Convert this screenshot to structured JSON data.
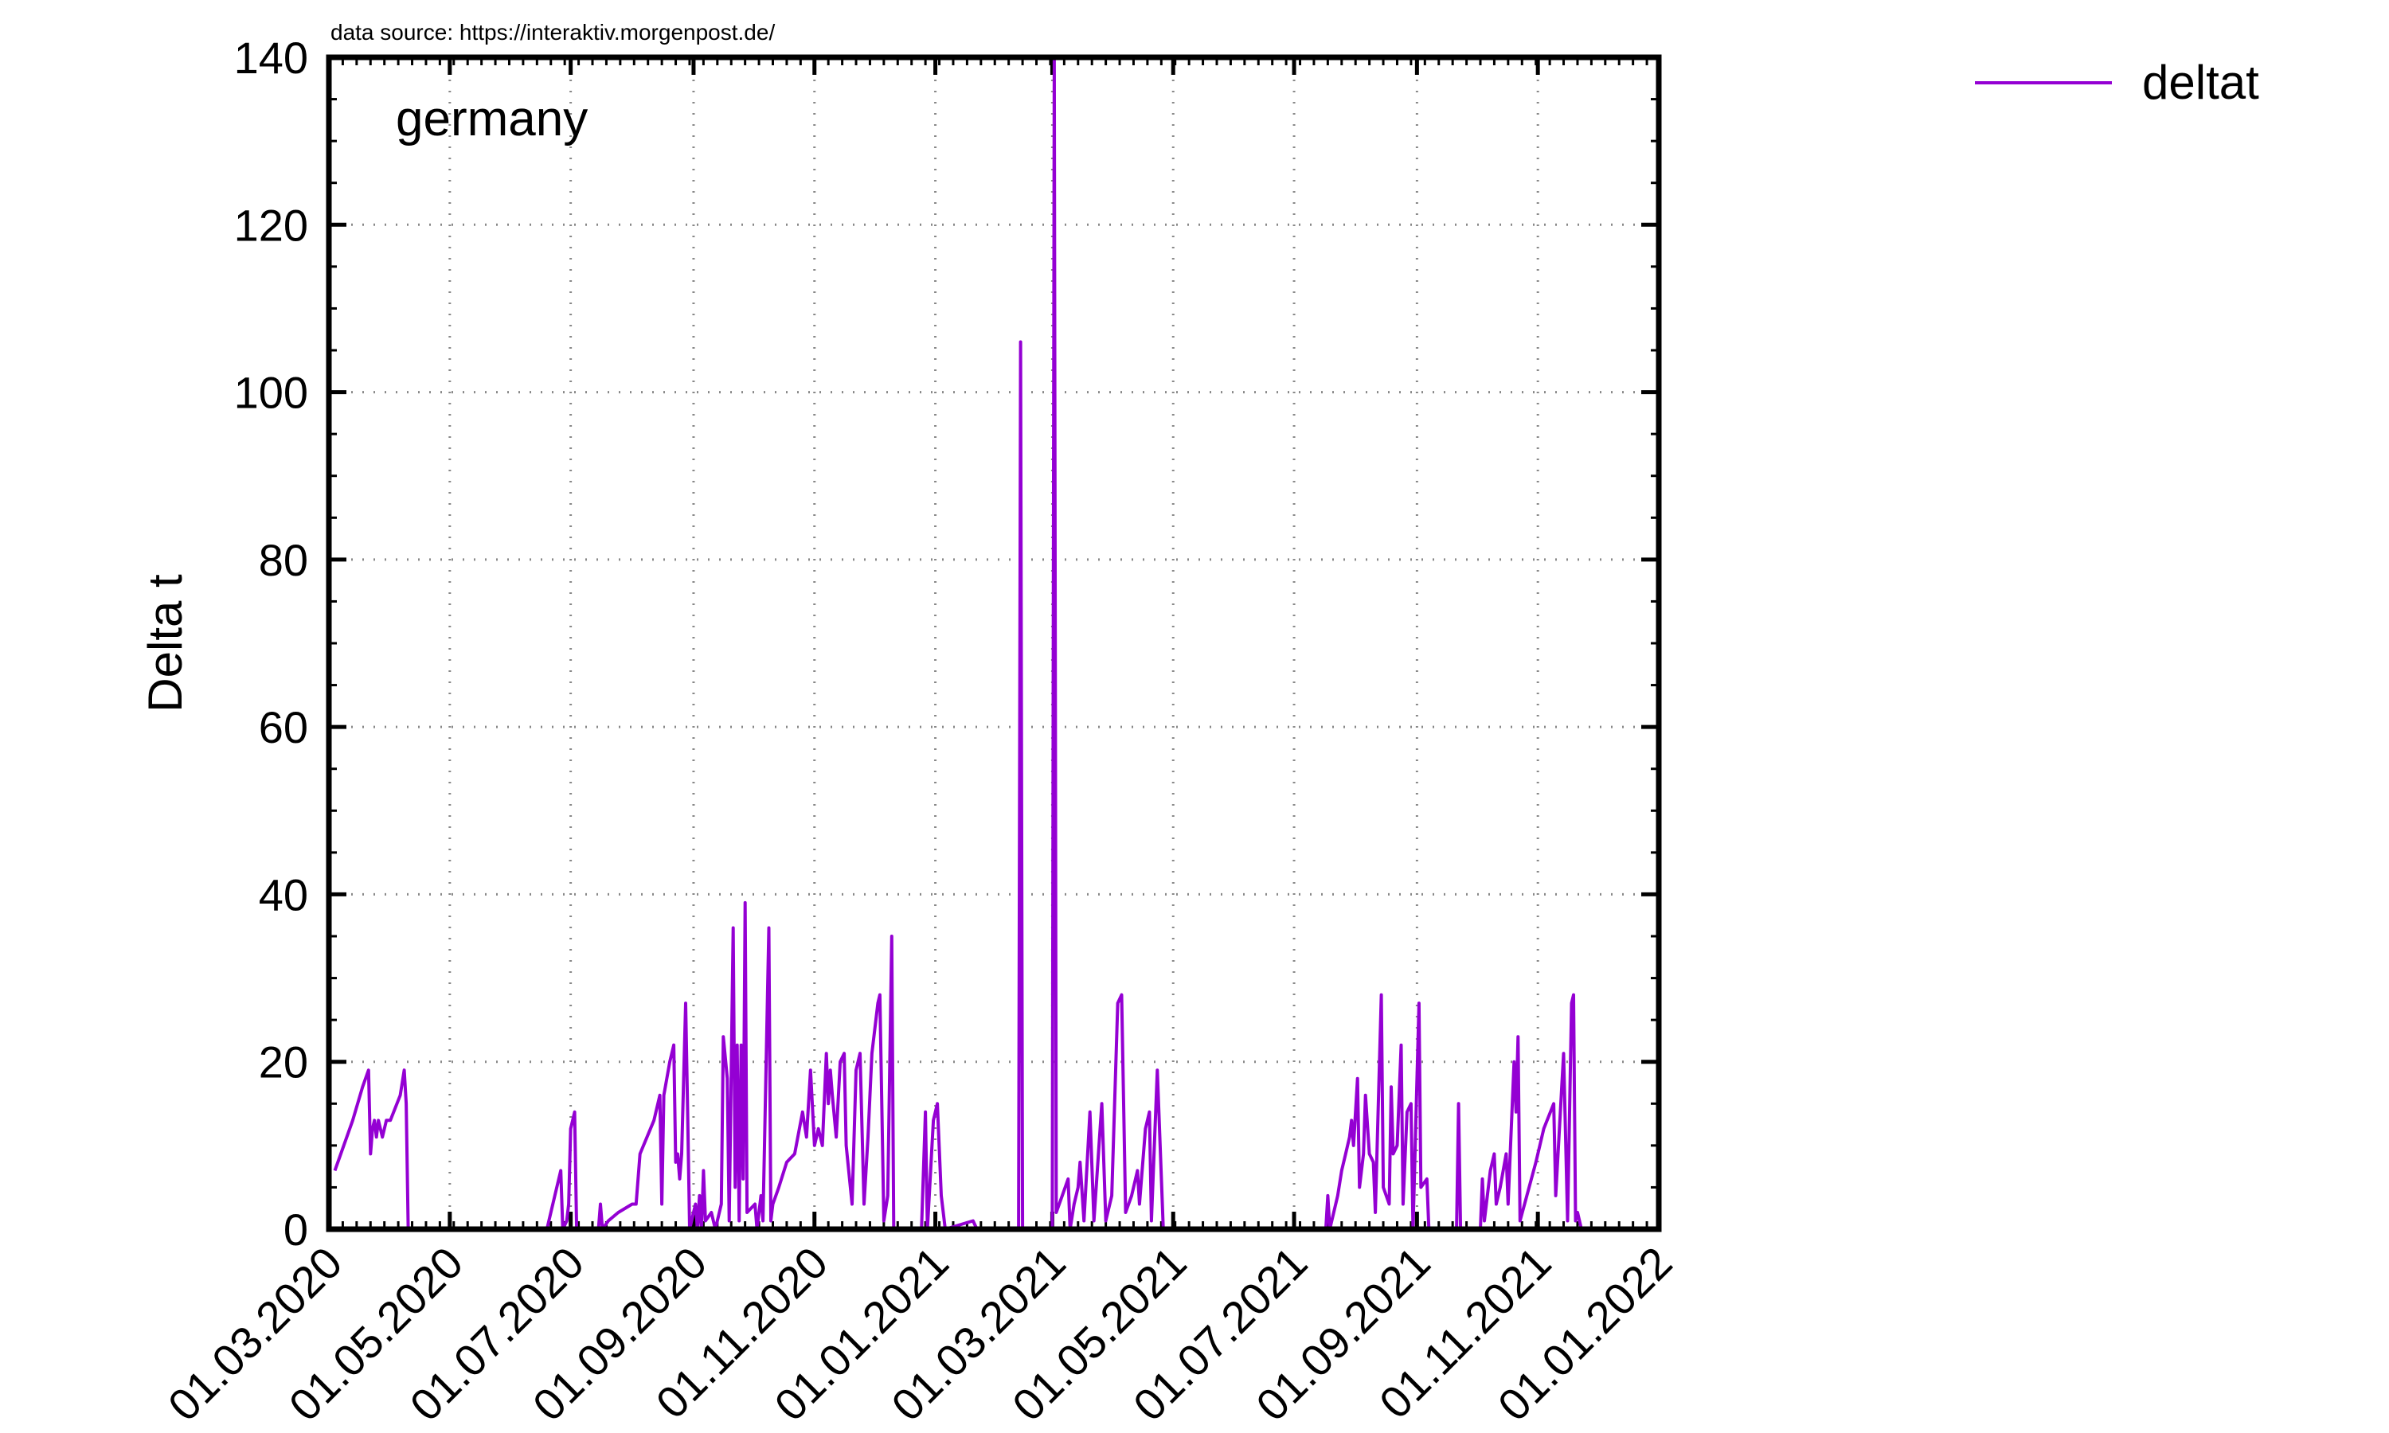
{
  "source_note": "data source: https://interaktiv.morgenpost.de/",
  "chart_data": {
    "type": "line",
    "annotation": "germany",
    "ylabel": "Delta t",
    "xlabel": "",
    "xlim": [
      "2020-03-01",
      "2022-01-01"
    ],
    "ylim": [
      0,
      140
    ],
    "x_ticks": [
      "01.03.2020",
      "01.05.2020",
      "01.07.2020",
      "01.09.2020",
      "01.11.2020",
      "01.01.2021",
      "01.03.2021",
      "01.05.2021",
      "01.07.2021",
      "01.09.2021",
      "01.11.2021",
      "01.01.2022"
    ],
    "y_ticks": [
      "0",
      "20",
      "40",
      "60",
      "80",
      "100",
      "120",
      "140"
    ],
    "grid": true,
    "legend_position": "top-right",
    "colors": {
      "deltat": "#9400d3",
      "frame": "#000000",
      "grid": "#888888"
    },
    "series": [
      {
        "name": "deltat",
        "color": "#9400d3",
        "points": [
          [
            "2020-03-04",
            7
          ],
          [
            "2020-03-13",
            13
          ],
          [
            "2020-03-18",
            17
          ],
          [
            "2020-03-21",
            19
          ],
          [
            "2020-03-22",
            9
          ],
          [
            "2020-03-23",
            12
          ],
          [
            "2020-03-24",
            13
          ],
          [
            "2020-03-25",
            11
          ],
          [
            "2020-03-26",
            13
          ],
          [
            "2020-03-27",
            12
          ],
          [
            "2020-03-28",
            11
          ],
          [
            "2020-03-30",
            13
          ],
          [
            "2020-04-01",
            13
          ],
          [
            "2020-04-06",
            16
          ],
          [
            "2020-04-08",
            19
          ],
          [
            "2020-04-09",
            15
          ],
          [
            "2020-04-10",
            0
          ],
          [
            "2020-06-19",
            0
          ],
          [
            "2020-06-23",
            4
          ],
          [
            "2020-06-26",
            7
          ],
          [
            "2020-06-27",
            0
          ],
          [
            "2020-06-29",
            1
          ],
          [
            "2020-06-30",
            3
          ],
          [
            "2020-07-01",
            12
          ],
          [
            "2020-07-03",
            14
          ],
          [
            "2020-07-04",
            0
          ],
          [
            "2020-07-15",
            0
          ],
          [
            "2020-07-16",
            3
          ],
          [
            "2020-07-17",
            0
          ],
          [
            "2020-07-20",
            1
          ],
          [
            "2020-07-25",
            2
          ],
          [
            "2020-08-01",
            3
          ],
          [
            "2020-08-03",
            3
          ],
          [
            "2020-08-05",
            9
          ],
          [
            "2020-08-12",
            13
          ],
          [
            "2020-08-15",
            16
          ],
          [
            "2020-08-16",
            3
          ],
          [
            "2020-08-17",
            16
          ],
          [
            "2020-08-20",
            20
          ],
          [
            "2020-08-22",
            22
          ],
          [
            "2020-08-23",
            8
          ],
          [
            "2020-08-24",
            9
          ],
          [
            "2020-08-25",
            6
          ],
          [
            "2020-08-26",
            9
          ],
          [
            "2020-08-28",
            27
          ],
          [
            "2020-08-29",
            14
          ],
          [
            "2020-08-30",
            0
          ],
          [
            "2020-09-02",
            3
          ],
          [
            "2020-09-03",
            0
          ],
          [
            "2020-09-04",
            4
          ],
          [
            "2020-09-05",
            0
          ],
          [
            "2020-09-06",
            7
          ],
          [
            "2020-09-07",
            1
          ],
          [
            "2020-09-10",
            2
          ],
          [
            "2020-09-12",
            0
          ],
          [
            "2020-09-15",
            3
          ],
          [
            "2020-09-16",
            23
          ],
          [
            "2020-09-18",
            18
          ],
          [
            "2020-09-19",
            1
          ],
          [
            "2020-09-21",
            36
          ],
          [
            "2020-09-22",
            5
          ],
          [
            "2020-09-23",
            22
          ],
          [
            "2020-09-24",
            1
          ],
          [
            "2020-09-25",
            22
          ],
          [
            "2020-09-26",
            6
          ],
          [
            "2020-09-27",
            39
          ],
          [
            "2020-09-28",
            2
          ],
          [
            "2020-10-02",
            3
          ],
          [
            "2020-10-03",
            0
          ],
          [
            "2020-10-05",
            4
          ],
          [
            "2020-10-06",
            1
          ],
          [
            "2020-10-09",
            36
          ],
          [
            "2020-10-10",
            1
          ],
          [
            "2020-10-11",
            3
          ],
          [
            "2020-10-14",
            5
          ],
          [
            "2020-10-18",
            8
          ],
          [
            "2020-10-22",
            9
          ],
          [
            "2020-10-26",
            14
          ],
          [
            "2020-10-28",
            11
          ],
          [
            "2020-10-30",
            19
          ],
          [
            "2020-11-01",
            10
          ],
          [
            "2020-11-03",
            12
          ],
          [
            "2020-11-05",
            10
          ],
          [
            "2020-11-07",
            21
          ],
          [
            "2020-11-08",
            15
          ],
          [
            "2020-11-09",
            19
          ],
          [
            "2020-11-10",
            16
          ],
          [
            "2020-11-12",
            11
          ],
          [
            "2020-11-14",
            20
          ],
          [
            "2020-11-16",
            21
          ],
          [
            "2020-11-17",
            10
          ],
          [
            "2020-11-20",
            3
          ],
          [
            "2020-11-22",
            19
          ],
          [
            "2020-11-24",
            21
          ],
          [
            "2020-11-26",
            3
          ],
          [
            "2020-11-28",
            11
          ],
          [
            "2020-11-30",
            21
          ],
          [
            "2020-12-03",
            27
          ],
          [
            "2020-12-04",
            28
          ],
          [
            "2020-12-06",
            1
          ],
          [
            "2020-12-08",
            4
          ],
          [
            "2020-12-10",
            35
          ],
          [
            "2020-12-11",
            0
          ],
          [
            "2020-12-25",
            0
          ],
          [
            "2020-12-27",
            14
          ],
          [
            "2020-12-28",
            0
          ],
          [
            "2020-12-31",
            13
          ],
          [
            "2021-01-02",
            15
          ],
          [
            "2021-01-04",
            4
          ],
          [
            "2021-01-06",
            0
          ],
          [
            "2021-01-20",
            1
          ],
          [
            "2021-01-22",
            0
          ],
          [
            "2021-02-12",
            0
          ],
          [
            "2021-02-13",
            106
          ],
          [
            "2021-02-14",
            0
          ],
          [
            "2021-03-01",
            0
          ],
          [
            "2021-03-02",
            140
          ],
          [
            "2021-03-03",
            2
          ],
          [
            "2021-03-06",
            4
          ],
          [
            "2021-03-09",
            6
          ],
          [
            "2021-03-10",
            0
          ],
          [
            "2021-03-12",
            3
          ],
          [
            "2021-03-14",
            5
          ],
          [
            "2021-03-15",
            8
          ],
          [
            "2021-03-17",
            1
          ],
          [
            "2021-03-20",
            14
          ],
          [
            "2021-03-22",
            1
          ],
          [
            "2021-03-26",
            15
          ],
          [
            "2021-03-28",
            1
          ],
          [
            "2021-03-31",
            4
          ],
          [
            "2021-04-03",
            27
          ],
          [
            "2021-04-05",
            28
          ],
          [
            "2021-04-07",
            2
          ],
          [
            "2021-04-10",
            4
          ],
          [
            "2021-04-13",
            7
          ],
          [
            "2021-04-14",
            3
          ],
          [
            "2021-04-17",
            12
          ],
          [
            "2021-04-19",
            14
          ],
          [
            "2021-04-20",
            1
          ],
          [
            "2021-04-23",
            19
          ],
          [
            "2021-04-26",
            0
          ],
          [
            "2021-07-17",
            0
          ],
          [
            "2021-07-18",
            4
          ],
          [
            "2021-07-19",
            0
          ],
          [
            "2021-07-23",
            4
          ],
          [
            "2021-07-25",
            7
          ],
          [
            "2021-07-27",
            9
          ],
          [
            "2021-07-29",
            11
          ],
          [
            "2021-07-30",
            13
          ],
          [
            "2021-07-31",
            10
          ],
          [
            "2021-08-02",
            18
          ],
          [
            "2021-08-03",
            5
          ],
          [
            "2021-08-05",
            9
          ],
          [
            "2021-08-06",
            16
          ],
          [
            "2021-08-08",
            9
          ],
          [
            "2021-08-10",
            8
          ],
          [
            "2021-08-11",
            2
          ],
          [
            "2021-08-14",
            28
          ],
          [
            "2021-08-15",
            5
          ],
          [
            "2021-08-18",
            3
          ],
          [
            "2021-08-19",
            17
          ],
          [
            "2021-08-20",
            9
          ],
          [
            "2021-08-22",
            10
          ],
          [
            "2021-08-24",
            22
          ],
          [
            "2021-08-25",
            3
          ],
          [
            "2021-08-27",
            14
          ],
          [
            "2021-08-29",
            15
          ],
          [
            "2021-08-30",
            0
          ],
          [
            "2021-09-02",
            27
          ],
          [
            "2021-09-03",
            5
          ],
          [
            "2021-09-06",
            6
          ],
          [
            "2021-09-07",
            0
          ],
          [
            "2021-09-21",
            0
          ],
          [
            "2021-09-22",
            15
          ],
          [
            "2021-09-23",
            0
          ],
          [
            "2021-10-03",
            0
          ],
          [
            "2021-10-04",
            6
          ],
          [
            "2021-10-05",
            1
          ],
          [
            "2021-10-08",
            7
          ],
          [
            "2021-10-10",
            9
          ],
          [
            "2021-10-11",
            3
          ],
          [
            "2021-10-13",
            5
          ],
          [
            "2021-10-16",
            9
          ],
          [
            "2021-10-17",
            3
          ],
          [
            "2021-10-20",
            20
          ],
          [
            "2021-10-21",
            14
          ],
          [
            "2021-10-22",
            23
          ],
          [
            "2021-10-23",
            1
          ],
          [
            "2021-10-31",
            8
          ],
          [
            "2021-11-04",
            12
          ],
          [
            "2021-11-09",
            15
          ],
          [
            "2021-11-10",
            4
          ],
          [
            "2021-11-14",
            21
          ],
          [
            "2021-11-16",
            1
          ],
          [
            "2021-11-18",
            27
          ],
          [
            "2021-11-19",
            28
          ],
          [
            "2021-11-20",
            1
          ],
          [
            "2021-11-21",
            2
          ],
          [
            "2021-11-23",
            0
          ]
        ]
      }
    ]
  }
}
